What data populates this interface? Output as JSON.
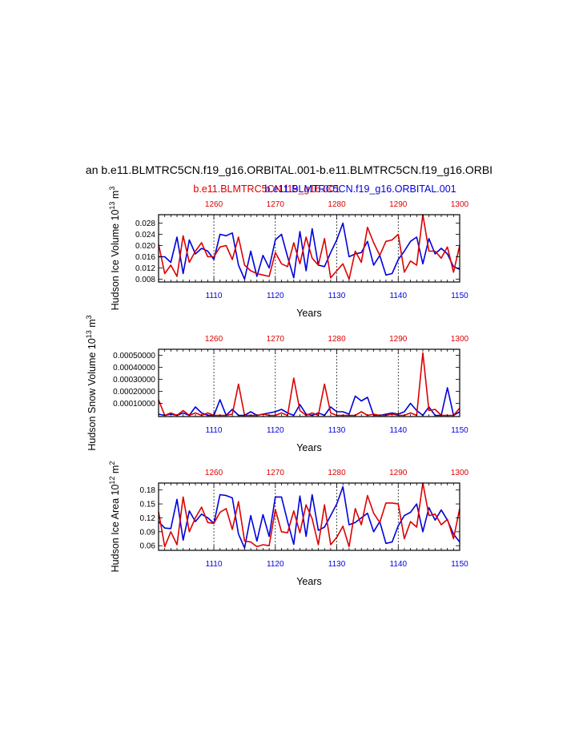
{
  "title": "an b.e11.BLMTRC5CN.f19_g16.ORBITAL.001-b.e11.BLMTRC5CN.f19_g16.ORBI",
  "legend": {
    "red_label": "b.e11.BLMTRC5CN.f19_g16.001",
    "blue_label": "b.e11.BLMTRC5CN.f19_g16.ORBITAL.001",
    "red_color": "#dd0000",
    "blue_color": "#0000dd"
  },
  "chart_data": [
    {
      "type": "line",
      "ylabel": "Hudson Ice Volume 10",
      "ylabel_exp": "13",
      "ylabel_unit": " m",
      "ylabel_unit_exp": "3",
      "xlabel": "Years",
      "bottom_axis": {
        "range": [
          1101,
          1150
        ],
        "ticks": [
          "1110",
          "1120",
          "1130",
          "1140",
          "1150"
        ]
      },
      "top_axis": {
        "range": [
          1251,
          1300
        ],
        "ticks": [
          "1260",
          "1270",
          "1280",
          "1290",
          "1300"
        ]
      },
      "ylim": [
        0.007,
        0.031
      ],
      "yticks": [
        0.008,
        0.012,
        0.016,
        0.02,
        0.024,
        0.028
      ],
      "ytick_labels": [
        "0.008",
        "0.012",
        "0.016",
        "0.020",
        "0.024",
        "0.028"
      ],
      "series": [
        {
          "name": "b.e11.BLMTRC5CN.f19_g16.ORBITAL.001",
          "color": "#0000dd",
          "values": [
            0.016,
            0.016,
            0.014,
            0.023,
            0.01,
            0.022,
            0.017,
            0.019,
            0.018,
            0.015,
            0.024,
            0.0235,
            0.0245,
            0.013,
            0.008,
            0.018,
            0.009,
            0.0165,
            0.012,
            0.022,
            0.024,
            0.016,
            0.0085,
            0.025,
            0.011,
            0.026,
            0.013,
            0.0125,
            0.0175,
            0.022,
            0.028,
            0.016,
            0.017,
            0.0175,
            0.0215,
            0.013,
            0.0165,
            0.0095,
            0.01,
            0.015,
            0.018,
            0.0215,
            0.023,
            0.0135,
            0.0225,
            0.017,
            0.019,
            0.017,
            0.0125,
            0.0115
          ]
        },
        {
          "name": "b.e11.BLMTRC5CN.f19_g16.001",
          "color": "#dd0000",
          "values": [
            0.0205,
            0.01,
            0.013,
            0.009,
            0.0235,
            0.014,
            0.018,
            0.021,
            0.016,
            0.016,
            0.0195,
            0.02,
            0.015,
            0.023,
            0.013,
            0.011,
            0.01,
            0.0095,
            0.009,
            0.0175,
            0.0135,
            0.0125,
            0.021,
            0.0135,
            0.023,
            0.0155,
            0.013,
            0.0225,
            0.0085,
            0.011,
            0.0135,
            0.008,
            0.018,
            0.014,
            0.0265,
            0.021,
            0.0165,
            0.0215,
            0.022,
            0.024,
            0.0105,
            0.0145,
            0.013,
            0.031,
            0.018,
            0.018,
            0.0155,
            0.0195,
            0.0105,
            0.02
          ]
        }
      ]
    },
    {
      "type": "line",
      "ylabel": "Hudson Snow Volume 10",
      "ylabel_exp": "13",
      "ylabel_unit": " m",
      "ylabel_unit_exp": "3",
      "xlabel": "Years",
      "bottom_axis": {
        "range": [
          1101,
          1150
        ],
        "ticks": [
          "1110",
          "1120",
          "1130",
          "1140",
          "1150"
        ]
      },
      "top_axis": {
        "range": [
          1251,
          1300
        ],
        "ticks": [
          "1260",
          "1270",
          "1280",
          "1290",
          "1300"
        ]
      },
      "ylim": [
        -1e-05,
        0.00055
      ],
      "yticks": [
        0.0001,
        0.0002,
        0.0003,
        0.0004,
        0.0005
      ],
      "ytick_labels": [
        "0.00010000",
        "0.00020000",
        "0.00030000",
        "0.00040000",
        "0.00050000"
      ],
      "series": [
        {
          "name": "b.e11.BLMTRC5CN.f19_g16.ORBITAL.001",
          "color": "#0000dd",
          "values": [
            1e-05,
            0.0,
            1e-05,
            0.0,
            2e-05,
            0.0,
            7e-05,
            2e-05,
            0.0,
            0.0,
            0.00013,
            0.0,
            5e-05,
            0.0,
            0.0,
            3e-05,
            0.0,
            1e-05,
            2e-05,
            3e-05,
            5e-05,
            2e-05,
            0.0,
            9e-05,
            1e-05,
            0.0,
            2e-05,
            0.0,
            7e-05,
            3e-05,
            3e-05,
            1e-05,
            0.00016,
            0.00012,
            0.00015,
            0.0,
            0.0,
            1e-05,
            2e-05,
            1e-05,
            3e-05,
            0.0001,
            4e-05,
            0.0,
            7e-05,
            0.0,
            0.0,
            0.00023,
            0.0,
            3e-05
          ]
        },
        {
          "name": "b.e11.BLMTRC5CN.f19_g16.001",
          "color": "#dd0000",
          "values": [
            0.00013,
            0.0,
            2e-05,
            0.0,
            4e-05,
            0.0,
            2e-05,
            0.0,
            2e-05,
            0.0,
            0.0,
            0.0,
            1e-05,
            0.00026,
            0.0,
            0.0,
            0.0,
            1e-05,
            0.0,
            0.0,
            2e-05,
            0.0,
            0.00031,
            4e-05,
            0.0,
            2e-05,
            0.0,
            0.00026,
            2e-05,
            0.0,
            0.0,
            0.0,
            0.0,
            3e-05,
            0.0,
            1e-05,
            0.0,
            0.0,
            1e-05,
            0.0,
            0.0,
            2e-05,
            0.0,
            0.00052,
            4e-05,
            5e-05,
            0.0,
            0.0,
            0.0,
            6e-05
          ]
        }
      ]
    },
    {
      "type": "line",
      "ylabel": "Hudson Ice Area 10",
      "ylabel_exp": "12",
      "ylabel_unit": " m",
      "ylabel_unit_exp": "2",
      "xlabel": "Years",
      "bottom_axis": {
        "range": [
          1101,
          1150
        ],
        "ticks": [
          "1110",
          "1120",
          "1130",
          "1140",
          "1150"
        ]
      },
      "top_axis": {
        "range": [
          1251,
          1300
        ],
        "ticks": [
          "1260",
          "1270",
          "1280",
          "1290",
          "1300"
        ]
      },
      "ylim": [
        0.05,
        0.195
      ],
      "yticks": [
        0.06,
        0.09,
        0.12,
        0.15,
        0.18
      ],
      "ytick_labels": [
        "0.06",
        "0.09",
        "0.12",
        "0.15",
        "0.18"
      ],
      "series": [
        {
          "name": "b.e11.BLMTRC5CN.f19_g16.ORBITAL.001",
          "color": "#0000dd",
          "values": [
            0.112,
            0.098,
            0.097,
            0.16,
            0.072,
            0.135,
            0.112,
            0.128,
            0.12,
            0.108,
            0.17,
            0.168,
            0.163,
            0.085,
            0.055,
            0.125,
            0.07,
            0.127,
            0.08,
            0.165,
            0.165,
            0.112,
            0.063,
            0.167,
            0.08,
            0.17,
            0.093,
            0.1,
            0.125,
            0.15,
            0.187,
            0.105,
            0.11,
            0.12,
            0.13,
            0.09,
            0.112,
            0.065,
            0.068,
            0.103,
            0.125,
            0.132,
            0.15,
            0.09,
            0.142,
            0.115,
            0.137,
            0.115,
            0.085,
            0.068
          ]
        },
        {
          "name": "b.e11.BLMTRC5CN.f19_g16.001",
          "color": "#dd0000",
          "values": [
            0.133,
            0.058,
            0.09,
            0.062,
            0.165,
            0.09,
            0.12,
            0.143,
            0.11,
            0.108,
            0.132,
            0.14,
            0.095,
            0.155,
            0.07,
            0.068,
            0.058,
            0.062,
            0.06,
            0.138,
            0.09,
            0.088,
            0.135,
            0.088,
            0.148,
            0.118,
            0.062,
            0.148,
            0.062,
            0.078,
            0.102,
            0.058,
            0.14,
            0.105,
            0.168,
            0.13,
            0.11,
            0.152,
            0.152,
            0.15,
            0.075,
            0.112,
            0.1,
            0.195,
            0.125,
            0.128,
            0.105,
            0.117,
            0.075,
            0.14
          ]
        }
      ]
    }
  ]
}
